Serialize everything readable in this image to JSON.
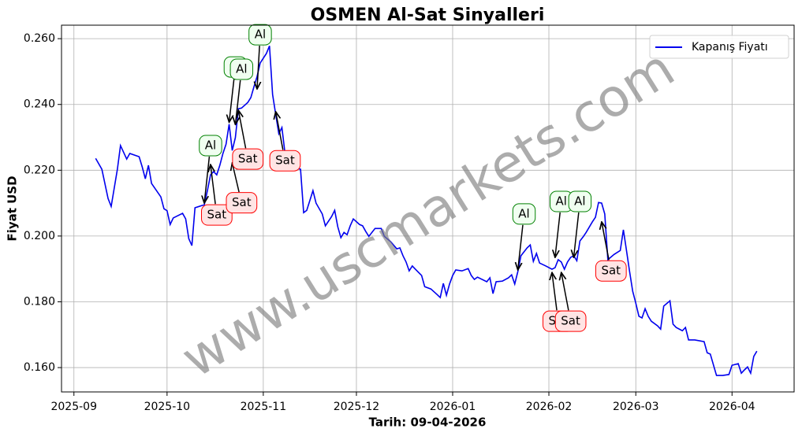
{
  "chart_data": {
    "type": "line",
    "title": "OSMEN Al-Sat Sinyalleri",
    "xlabel": "Tarih: 09-04-2026",
    "ylabel": "Fiyat USD",
    "watermark": "www.uscmarkets.com",
    "legend": "upper right",
    "grid": true,
    "xlim": [
      "2025-08-28",
      "2026-04-21"
    ],
    "ylim": [
      0.1526,
      0.2641
    ],
    "xticks": [
      {
        "value": "2025-09-01",
        "label": "2025-09"
      },
      {
        "value": "2025-10-01",
        "label": "2025-10"
      },
      {
        "value": "2025-11-01",
        "label": "2025-11"
      },
      {
        "value": "2025-12-01",
        "label": "2025-12"
      },
      {
        "value": "2026-01-01",
        "label": "2026-01"
      },
      {
        "value": "2026-02-01",
        "label": "2026-02"
      },
      {
        "value": "2026-03-01",
        "label": "2026-03"
      },
      {
        "value": "2026-04-01",
        "label": "2026-04"
      }
    ],
    "yticks": [
      {
        "value": 0.16,
        "label": "0.160"
      },
      {
        "value": 0.18,
        "label": "0.180"
      },
      {
        "value": 0.2,
        "label": "0.200"
      },
      {
        "value": 0.22,
        "label": "0.220"
      },
      {
        "value": 0.24,
        "label": "0.240"
      },
      {
        "value": 0.26,
        "label": "0.260"
      }
    ],
    "x": [
      "2025-09-08",
      "2025-09-10",
      "2025-09-12",
      "2025-09-13",
      "2025-09-15",
      "2025-09-16",
      "2025-09-18",
      "2025-09-19",
      "2025-09-22",
      "2025-09-23",
      "2025-09-24",
      "2025-09-25",
      "2025-09-26",
      "2025-09-29",
      "2025-09-30",
      "2025-10-01",
      "2025-10-02",
      "2025-10-03",
      "2025-10-06",
      "2025-10-07",
      "2025-10-08",
      "2025-10-09",
      "2025-10-10",
      "2025-10-13",
      "2025-10-14",
      "2025-10-15",
      "2025-10-16",
      "2025-10-17",
      "2025-10-18",
      "2025-10-19",
      "2025-10-20",
      "2025-10-21",
      "2025-10-22",
      "2025-10-23",
      "2025-10-24",
      "2025-10-25",
      "2025-10-27",
      "2025-10-28",
      "2025-10-29",
      "2025-10-30",
      "2025-10-31",
      "2025-11-02",
      "2025-11-03",
      "2025-11-04",
      "2025-11-05",
      "2025-11-06",
      "2025-11-07",
      "2025-11-08",
      "2025-11-09",
      "2025-11-10",
      "2025-11-11",
      "2025-11-13",
      "2025-11-14",
      "2025-11-15",
      "2025-11-17",
      "2025-11-18",
      "2025-11-20",
      "2025-11-21",
      "2025-11-23",
      "2025-11-24",
      "2025-11-25",
      "2025-11-26",
      "2025-11-27",
      "2025-11-28",
      "2025-11-29",
      "2025-11-30",
      "2025-12-02",
      "2025-12-03",
      "2025-12-04",
      "2025-12-05",
      "2025-12-07",
      "2025-12-09",
      "2025-12-10",
      "2025-12-12",
      "2025-12-14",
      "2025-12-15",
      "2025-12-16",
      "2025-12-17",
      "2025-12-18",
      "2025-12-19",
      "2025-12-20",
      "2025-12-22",
      "2025-12-23",
      "2025-12-25",
      "2025-12-27",
      "2025-12-28",
      "2025-12-29",
      "2025-12-30",
      "2025-12-31",
      "2026-01-01",
      "2026-01-02",
      "2026-01-04",
      "2026-01-06",
      "2026-01-07",
      "2026-01-08",
      "2026-01-09",
      "2026-01-12",
      "2026-01-13",
      "2026-01-14",
      "2026-01-15",
      "2026-01-17",
      "2026-01-19",
      "2026-01-20",
      "2026-01-21",
      "2026-01-22",
      "2026-01-23",
      "2026-01-25",
      "2026-01-26",
      "2026-01-27",
      "2026-01-28",
      "2026-01-29",
      "2026-01-31",
      "2026-02-02",
      "2026-02-03",
      "2026-02-04",
      "2026-02-05",
      "2026-02-06",
      "2026-02-07",
      "2026-02-08",
      "2026-02-09",
      "2026-02-10",
      "2026-02-11",
      "2026-02-12",
      "2026-02-13",
      "2026-02-15",
      "2026-02-16",
      "2026-02-17",
      "2026-02-18",
      "2026-02-19",
      "2026-02-20",
      "2026-02-22",
      "2026-02-24",
      "2026-02-25",
      "2026-02-26",
      "2026-02-27",
      "2026-02-28",
      "2026-03-01",
      "2026-03-02",
      "2026-03-03",
      "2026-03-04",
      "2026-03-05",
      "2026-03-06",
      "2026-03-08",
      "2026-03-09",
      "2026-03-10",
      "2026-03-12",
      "2026-03-13",
      "2026-03-14",
      "2026-03-16",
      "2026-03-17",
      "2026-03-18",
      "2026-03-20",
      "2026-03-23",
      "2026-03-24",
      "2026-03-25",
      "2026-03-27",
      "2026-03-29",
      "2026-03-31",
      "2026-04-01",
      "2026-04-03",
      "2026-04-04",
      "2026-04-05",
      "2026-04-06",
      "2026-04-07",
      "2026-04-08",
      "2026-04-09"
    ],
    "series": [
      {
        "name": "Kapanış Fiyatı",
        "color": "#0000ee",
        "values": [
          0.2236,
          0.2203,
          0.2114,
          0.209,
          0.2203,
          0.2275,
          0.2234,
          0.2251,
          0.2241,
          0.221,
          0.2174,
          0.2215,
          0.216,
          0.2119,
          0.2083,
          0.2077,
          0.2035,
          0.2055,
          0.2069,
          0.2052,
          0.1992,
          0.1971,
          0.2086,
          0.2095,
          0.2138,
          0.2186,
          0.2196,
          0.2186,
          0.2215,
          0.2251,
          0.2279,
          0.234,
          0.226,
          0.2299,
          0.2387,
          0.2389,
          0.2406,
          0.2421,
          0.2454,
          0.2485,
          0.2526,
          0.2555,
          0.2578,
          0.243,
          0.237,
          0.2311,
          0.233,
          0.2251,
          0.2239,
          0.2236,
          0.2208,
          0.2203,
          0.2071,
          0.2078,
          0.2138,
          0.21,
          0.2067,
          0.2031,
          0.2059,
          0.2078,
          0.2028,
          0.1995,
          0.2011,
          0.2004,
          0.2031,
          0.2052,
          0.2035,
          0.2031,
          0.2014,
          0.1999,
          0.2023,
          0.2023,
          0.1999,
          0.1983,
          0.1961,
          0.1964,
          0.194,
          0.1921,
          0.1894,
          0.1909,
          0.1899,
          0.188,
          0.1846,
          0.1839,
          0.1822,
          0.1813,
          0.1856,
          0.182,
          0.1854,
          0.188,
          0.1897,
          0.1894,
          0.1901,
          0.188,
          0.1868,
          0.1875,
          0.1861,
          0.1873,
          0.1825,
          0.1861,
          0.1863,
          0.1873,
          0.1882,
          0.1854,
          0.1892,
          0.194,
          0.1964,
          0.1973,
          0.1923,
          0.1947,
          0.1918,
          0.1909,
          0.1899,
          0.1904,
          0.1928,
          0.1921,
          0.1899,
          0.1921,
          0.1935,
          0.194,
          0.1925,
          0.1985,
          0.1997,
          0.2011,
          0.2043,
          0.2057,
          0.2102,
          0.21,
          0.2067,
          0.1928,
          0.1944,
          0.1956,
          0.2019,
          0.1956,
          0.1892,
          0.1832,
          0.1796,
          0.1756,
          0.1751,
          0.1779,
          0.1756,
          0.1741,
          0.1727,
          0.1717,
          0.1787,
          0.1803,
          0.1732,
          0.1722,
          0.1712,
          0.1722,
          0.1684,
          0.1684,
          0.1679,
          0.1645,
          0.1641,
          0.1576,
          0.1576,
          0.1579,
          0.1607,
          0.1612,
          0.1583,
          0.1593,
          0.1602,
          0.1583,
          0.1634,
          0.165
        ]
      }
    ],
    "annotations": [
      {
        "text": "Al",
        "color": "green",
        "x": "2025-10-13",
        "y": 0.21,
        "text_x": "2025-10-15",
        "text_y": 0.2275
      },
      {
        "text": "Sat",
        "color": "red",
        "x": "2025-10-15",
        "y": 0.2217,
        "text_x": "2025-10-17",
        "text_y": 0.2064
      },
      {
        "text": "Al",
        "color": "green",
        "x": "2025-10-21",
        "y": 0.2346,
        "text_x": "2025-10-23",
        "text_y": 0.2514
      },
      {
        "text": "Al",
        "color": "green",
        "x": "2025-10-23",
        "y": 0.2339,
        "text_x": "2025-10-25",
        "text_y": 0.2507
      },
      {
        "text": "Sat",
        "color": "red",
        "x": "2025-10-22",
        "y": 0.2222,
        "text_x": "2025-10-25",
        "text_y": 0.2101
      },
      {
        "text": "Sat",
        "color": "red",
        "x": "2025-10-24",
        "y": 0.2382,
        "text_x": "2025-10-27",
        "text_y": 0.2234
      },
      {
        "text": "Al",
        "color": "green",
        "x": "2025-10-30",
        "y": 0.2447,
        "text_x": "2025-10-31",
        "text_y": 0.2612
      },
      {
        "text": "Sat",
        "color": "red",
        "x": "2025-11-05",
        "y": 0.2378,
        "text_x": "2025-11-08",
        "text_y": 0.2229
      },
      {
        "text": "Al",
        "color": "green",
        "x": "2026-01-22",
        "y": 0.1897,
        "text_x": "2026-01-24",
        "text_y": 0.2067
      },
      {
        "text": "Al",
        "color": "green",
        "x": "2026-02-03",
        "y": 0.1935,
        "text_x": "2026-02-05",
        "text_y": 0.2105
      },
      {
        "text": "Al",
        "color": "green",
        "x": "2026-02-09",
        "y": 0.1935,
        "text_x": "2026-02-11",
        "text_y": 0.2105
      },
      {
        "text": "Sat",
        "color": "red",
        "x": "2026-02-02",
        "y": 0.1889,
        "text_x": "2026-02-04",
        "text_y": 0.1741
      },
      {
        "text": "Sat",
        "color": "red",
        "x": "2026-02-05",
        "y": 0.1889,
        "text_x": "2026-02-08",
        "text_y": 0.1741
      },
      {
        "text": "Sat",
        "color": "red",
        "x": "2026-02-18",
        "y": 0.2043,
        "text_x": "2026-02-21",
        "text_y": 0.1894
      }
    ]
  }
}
